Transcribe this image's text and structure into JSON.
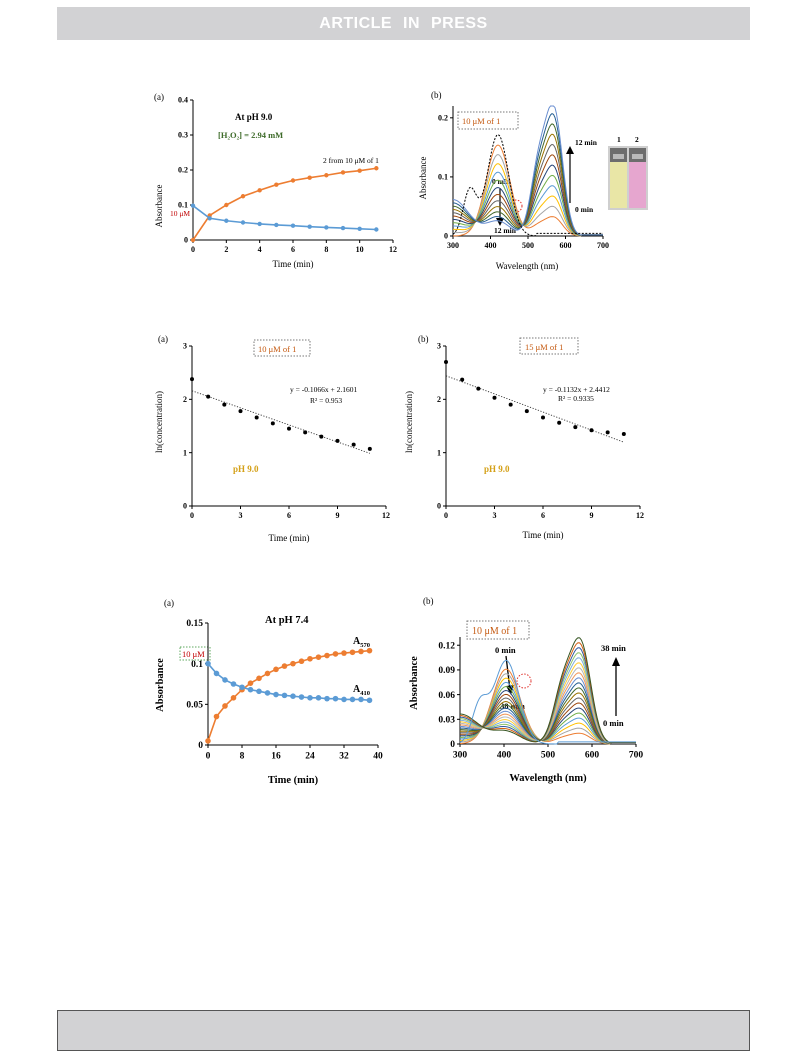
{
  "header": {
    "banner_text": "ARTICLE IN PRESS"
  },
  "chart_data": [
    {
      "panel_label": "(a)",
      "type": "line",
      "annotations": {
        "title": "At pH 9.0",
        "h2o2": "[H₂O₂] = 2.94 mM",
        "series_2": "2 from 10 μM of 1",
        "conc": "10 μM"
      },
      "xlabel": "Time (min)",
      "ylabel": "Absorbance",
      "xlim": [
        0,
        12
      ],
      "ylim": [
        0,
        0.4
      ],
      "xticks": [
        "0",
        "2",
        "4",
        "6",
        "8",
        "10",
        "12"
      ],
      "yticks": [
        "0",
        "0.1",
        "0.2",
        "0.3",
        "0.4"
      ],
      "series": [
        {
          "color": "#ed7d31",
          "x": [
            0,
            1,
            2,
            3,
            4,
            5,
            6,
            7,
            8,
            9,
            10,
            11
          ],
          "y": [
            0.0,
            0.07,
            0.1,
            0.125,
            0.142,
            0.158,
            0.17,
            0.178,
            0.185,
            0.193,
            0.198,
            0.205
          ]
        },
        {
          "color": "#5b9bd5",
          "x": [
            0,
            1,
            2,
            3,
            4,
            5,
            6,
            7,
            8,
            9,
            10,
            11
          ],
          "y": [
            0.098,
            0.062,
            0.055,
            0.05,
            0.046,
            0.043,
            0.041,
            0.038,
            0.036,
            0.034,
            0.032,
            0.03
          ]
        }
      ]
    },
    {
      "panel_label": "(b)",
      "type": "line",
      "annotations": {
        "box": "10 μM of 1",
        "t0_left": "0 min",
        "t12_left": "12 min",
        "t12_right": "12 min",
        "t0_right": "0 min",
        "vial_1": "1",
        "vial_2": "2"
      },
      "xlabel": "Wavelength (nm)",
      "ylabel": "Absorbance",
      "xlim": [
        300,
        700
      ],
      "ylim": [
        0,
        0.22
      ],
      "xticks": [
        "300",
        "400",
        "500",
        "600",
        "700"
      ],
      "yticks": [
        "0",
        "0.1",
        "0.2"
      ],
      "spectra": {
        "n": 12,
        "peak_x": 570,
        "peak_max": 0.205,
        "peak_min": 0.03,
        "band_x": 420
      }
    },
    {
      "panel_label": "(a)",
      "type": "scatter",
      "annotations": {
        "box": "10 μM of 1",
        "equation": "y = -0.1066x + 2.1601",
        "r2": "R² = 0.953",
        "ph": "pH 9.0"
      },
      "xlabel": "Time (min)",
      "ylabel": "ln(concentration)",
      "xlim": [
        0,
        12
      ],
      "ylim": [
        0,
        3
      ],
      "xticks": [
        "0",
        "3",
        "6",
        "9",
        "12"
      ],
      "yticks": [
        "0",
        "1",
        "2",
        "3"
      ],
      "points": {
        "x": [
          0,
          1,
          2,
          3,
          4,
          5,
          6,
          7,
          8,
          9,
          10,
          11
        ],
        "y": [
          2.38,
          2.05,
          1.9,
          1.78,
          1.66,
          1.55,
          1.45,
          1.38,
          1.3,
          1.22,
          1.15,
          1.07
        ]
      },
      "trend": {
        "slope": -0.1066,
        "intercept": 2.1601
      }
    },
    {
      "panel_label": "(b)",
      "type": "scatter",
      "annotations": {
        "box": "15 μM of 1",
        "equation": "y = -0.1132x + 2.4412",
        "r2": "R² = 0.9335",
        "ph": "pH 9.0"
      },
      "xlabel": "Time (min)",
      "ylabel": "ln(concentration)",
      "xlim": [
        0,
        12
      ],
      "ylim": [
        0,
        3
      ],
      "xticks": [
        "0",
        "3",
        "6",
        "9",
        "12"
      ],
      "yticks": [
        "0",
        "1",
        "2",
        "3"
      ],
      "points": {
        "x": [
          0,
          1,
          2,
          3,
          4,
          5,
          6,
          7,
          8,
          9,
          10,
          11
        ],
        "y": [
          2.7,
          2.37,
          2.2,
          2.03,
          1.9,
          1.78,
          1.66,
          1.56,
          1.48,
          1.42,
          1.38,
          1.35
        ]
      },
      "trend": {
        "slope": -0.1132,
        "intercept": 2.4412
      }
    },
    {
      "panel_label": "(a)",
      "type": "line",
      "annotations": {
        "title": "At pH 7.4",
        "a570_main": "A",
        "a570_sub": "570",
        "a410_main": "A",
        "a410_sub": "410",
        "conc": "10 μM"
      },
      "xlabel": "Time (min)",
      "ylabel": "Absorbance",
      "xlim": [
        0,
        40
      ],
      "ylim": [
        0,
        0.15
      ],
      "xticks": [
        "0",
        "8",
        "16",
        "24",
        "32",
        "40"
      ],
      "yticks": [
        "0",
        "0.05",
        "0.1",
        "0.15"
      ],
      "series": [
        {
          "color": "#ed7d31",
          "x": [
            0,
            2,
            4,
            6,
            8,
            10,
            12,
            14,
            16,
            18,
            20,
            22,
            24,
            26,
            28,
            30,
            32,
            34,
            36,
            38
          ],
          "y": [
            0.005,
            0.035,
            0.048,
            0.058,
            0.068,
            0.076,
            0.082,
            0.088,
            0.093,
            0.097,
            0.1,
            0.103,
            0.106,
            0.108,
            0.11,
            0.112,
            0.113,
            0.114,
            0.115,
            0.116
          ]
        },
        {
          "color": "#5b9bd5",
          "x": [
            0,
            2,
            4,
            6,
            8,
            10,
            12,
            14,
            16,
            18,
            20,
            22,
            24,
            26,
            28,
            30,
            32,
            34,
            36,
            38
          ],
          "y": [
            0.1,
            0.088,
            0.08,
            0.075,
            0.071,
            0.068,
            0.066,
            0.064,
            0.062,
            0.061,
            0.06,
            0.059,
            0.058,
            0.058,
            0.057,
            0.057,
            0.056,
            0.056,
            0.056,
            0.055
          ]
        }
      ]
    },
    {
      "panel_label": "(b)",
      "type": "line",
      "annotations": {
        "box": "10 μM of 1",
        "t0_left": "0 min",
        "t38_left": "38 min",
        "t38_right": "38 min",
        "t0_right": "0 min"
      },
      "xlabel": "Wavelength (nm)",
      "ylabel": "Absorbance",
      "xlim": [
        300,
        700
      ],
      "ylim": [
        0,
        0.13
      ],
      "xticks": [
        "300",
        "400",
        "500",
        "600",
        "700"
      ],
      "yticks": [
        "0",
        "0.03",
        "0.06",
        "0.09",
        "0.12"
      ],
      "spectra": {
        "n": 20,
        "peak_x": 575,
        "peak_max": 0.118,
        "peak_min": 0.012,
        "band_x": 405
      }
    }
  ]
}
